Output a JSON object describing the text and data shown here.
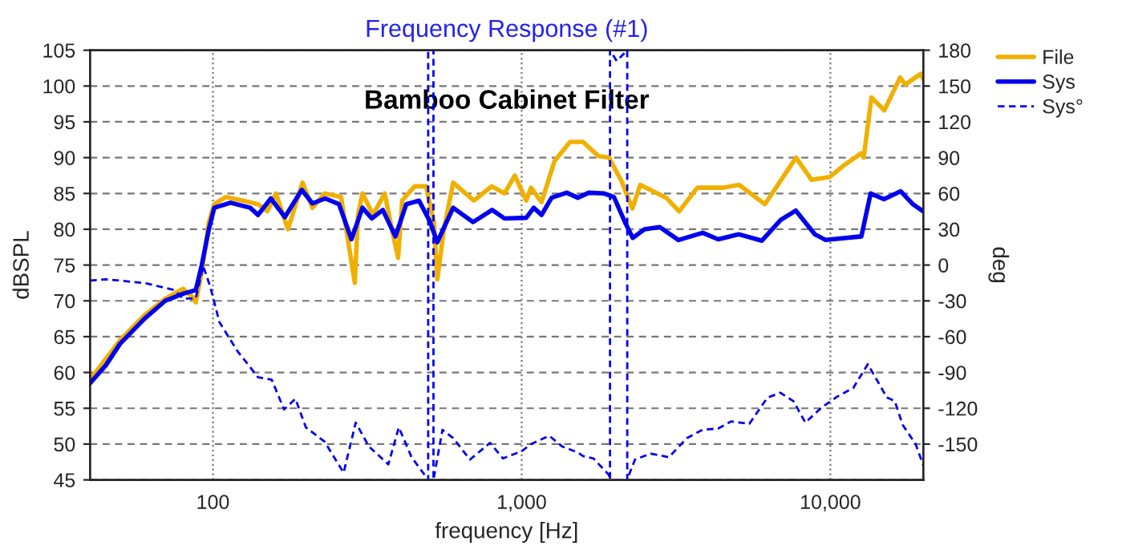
{
  "chart_data": {
    "type": "line",
    "title": "Frequency Response (#1)",
    "xlabel": "frequency [Hz]",
    "ylabel": "dBSPL",
    "y2label": "deg",
    "annotations": [
      "Bamboo Cabinet Filter"
    ],
    "log": "x",
    "grid": true,
    "legend": "top right",
    "xlim": [
      40,
      20000
    ],
    "xticks": [
      {
        "value": 100,
        "label": "100"
      },
      {
        "value": 1000,
        "label": "1,000"
      },
      {
        "value": 10000,
        "label": "10,000"
      }
    ],
    "ylim": [
      45,
      105
    ],
    "yticks": [
      45,
      50,
      55,
      60,
      65,
      70,
      75,
      80,
      85,
      90,
      95,
      100,
      105
    ],
    "y2lim": [
      -180,
      180
    ],
    "y2ticks": [
      -150,
      -120,
      -90,
      -60,
      -30,
      0,
      30,
      60,
      90,
      120,
      150,
      180
    ],
    "series": [
      {
        "name": "File",
        "color": "#f0b000",
        "line_style": "solid",
        "x": [
          40,
          50,
          60,
          70,
          80,
          86,
          88,
          92,
          97,
          101,
          110,
          125,
          140,
          150,
          160,
          175,
          195,
          210,
          230,
          260,
          275,
          288,
          295,
          305,
          330,
          360,
          380,
          398,
          410,
          450,
          490,
          520,
          533,
          560,
          600,
          700,
          800,
          880,
          950,
          1035,
          1072,
          1160,
          1277,
          1435,
          1580,
          1775,
          1919,
          2112,
          2284,
          2421,
          2939,
          3236,
          3707,
          4498,
          5058,
          6137,
          7740,
          8690,
          9960,
          10970,
          12570,
          12820,
          13580,
          14960,
          16820,
          17470,
          19630,
          20000
        ],
        "values": [
          59,
          64.5,
          68,
          70.3,
          71.7,
          70.5,
          69.8,
          74,
          81,
          83.5,
          84.5,
          84,
          83.5,
          82.5,
          85,
          80,
          86.5,
          83,
          85,
          84.5,
          78,
          72.5,
          82,
          85,
          82,
          85,
          80,
          76,
          84,
          86,
          86,
          81,
          73,
          80,
          86.5,
          84,
          86,
          85,
          87.5,
          84,
          85.8,
          83.8,
          89.5,
          92.2,
          92.2,
          90.2,
          90,
          86.6,
          82.9,
          86.2,
          84.4,
          82.5,
          85.8,
          85.8,
          86.2,
          83.5,
          90,
          86.9,
          87.3,
          88.8,
          90.6,
          90,
          98.4,
          96.6,
          101.2,
          100.2,
          101.7,
          100.9
        ]
      },
      {
        "name": "Sys",
        "color": "#0000ee",
        "line_style": "solid",
        "x": [
          40,
          45,
          50,
          60,
          70,
          80,
          88,
          92,
          97,
          101,
          114,
          132,
          140,
          154,
          171,
          194,
          210,
          231,
          256,
          281,
          305,
          327,
          355,
          390,
          423,
          465,
          503,
          533,
          600,
          696,
          802,
          880,
          1035,
          1094,
          1160,
          1250,
          1400,
          1520,
          1650,
          1850,
          1990,
          2160,
          2290,
          2500,
          2800,
          3220,
          3860,
          4330,
          5040,
          6000,
          6900,
          7730,
          8900,
          9660,
          12600,
          13500,
          14900,
          16900,
          18500,
          20000
        ],
        "values": [
          58.5,
          61,
          64,
          67.5,
          70,
          71,
          71.5,
          75,
          80,
          83,
          83.7,
          83,
          82,
          84.3,
          81.7,
          85.5,
          83.6,
          84.3,
          83.5,
          78.6,
          83,
          81.5,
          82.7,
          79,
          83.5,
          84,
          81.2,
          78.2,
          83,
          81,
          82.7,
          81.5,
          81.6,
          83,
          82,
          84.4,
          85.1,
          84.4,
          85.1,
          85,
          84.5,
          81,
          78.8,
          80,
          80.3,
          78.5,
          79.5,
          78.6,
          79.3,
          78.4,
          81.3,
          82.6,
          79.3,
          78.5,
          79,
          85,
          84.2,
          85.3,
          83.5,
          82.5
        ]
      },
      {
        "name": "Sys°",
        "color": "#0000ee",
        "line_style": "dashed",
        "axis": "y2",
        "x": [
          40,
          45,
          60,
          75,
          80,
          88,
          93,
          98,
          105,
          120,
          140,
          155,
          170,
          185,
          200,
          230,
          265,
          290,
          320,
          370,
          400,
          440,
          495,
          498,
          498,
          518,
          518,
          554,
          600,
          680,
          790,
          870,
          1000,
          1072,
          1228,
          1353,
          1520,
          1580,
          1708,
          1919,
          1933,
          1933,
          2032,
          2198,
          2198,
          2240,
          2329,
          2617,
          2999,
          3430,
          3854,
          4329,
          4767,
          5463,
          6255,
          6889,
          7590,
          8300,
          9400,
          10560,
          11860,
          13220,
          14120,
          15250,
          16170,
          17150,
          18890,
          20000
        ],
        "values": [
          -13,
          -12,
          -15,
          -21,
          -28,
          -28,
          -1,
          -18,
          -48,
          -72,
          -94,
          -96,
          -121,
          -112,
          -136,
          -148,
          -174,
          -132,
          -152,
          -167,
          -136,
          -161,
          -179,
          -180,
          180,
          180,
          -180,
          -138,
          -145,
          -163,
          -149,
          -162,
          -156,
          -150,
          -143,
          -152,
          -157,
          -160,
          -162,
          -176,
          -180,
          180,
          171,
          180,
          -180,
          -174,
          -163,
          -158,
          -161,
          -145,
          -138,
          -137,
          -131,
          -133,
          -111,
          -107,
          -114,
          -132,
          -119,
          -110,
          -103,
          -83,
          -96,
          -111,
          -114,
          -134,
          -150,
          -168
        ]
      }
    ]
  }
}
